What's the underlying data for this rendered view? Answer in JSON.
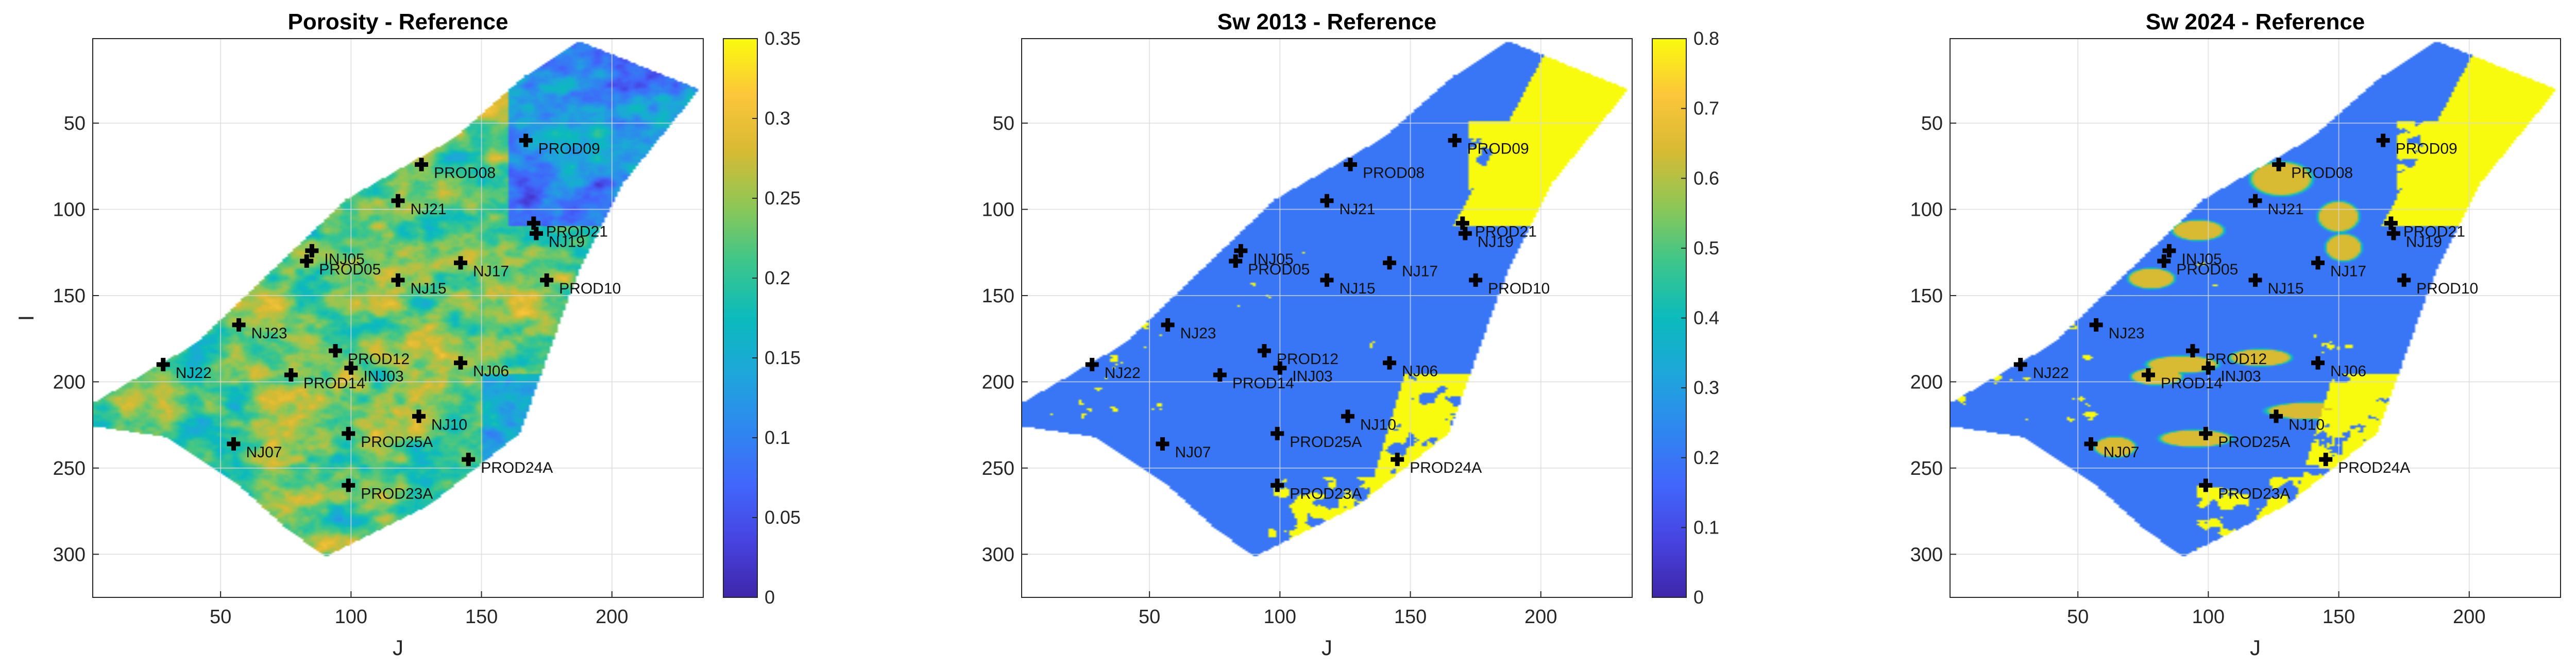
{
  "chart_data": [
    {
      "type": "heatmap",
      "title": "Porosity - Reference",
      "xlabel": "J",
      "ylabel": "I",
      "xlim": [
        1,
        235
      ],
      "ylim": [
        325,
        1
      ],
      "x_ticks": [
        50,
        100,
        150,
        200
      ],
      "y_ticks": [
        50,
        100,
        150,
        200,
        250,
        300
      ],
      "colorbar": {
        "min": 0,
        "max": 0.35,
        "ticks": [
          0,
          0.05,
          0.1,
          0.15,
          0.2,
          0.25,
          0.3,
          0.35
        ],
        "tick_labels": [
          "0",
          "0.05",
          "0.1",
          "0.15",
          "0.2",
          "0.25",
          "0.3",
          "0.35"
        ],
        "colormap": "parula"
      },
      "field": "porosity",
      "grid": true
    },
    {
      "type": "heatmap",
      "title": "Sw 2013 - Reference",
      "xlabel": "J",
      "ylabel": "",
      "xlim": [
        1,
        235
      ],
      "ylim": [
        325,
        1
      ],
      "x_ticks": [
        50,
        100,
        150,
        200
      ],
      "y_ticks": [
        50,
        100,
        150,
        200,
        250,
        300
      ],
      "colorbar": {
        "min": 0,
        "max": 0.8,
        "ticks": [
          0,
          0.1,
          0.2,
          0.3,
          0.4,
          0.5,
          0.6,
          0.7,
          0.8
        ],
        "tick_labels": [
          "0",
          "0.1",
          "0.2",
          "0.3",
          "0.4",
          "0.5",
          "0.6",
          "0.7",
          "0.8"
        ],
        "colormap": "parula"
      },
      "field": "sw2013",
      "grid": true
    },
    {
      "type": "heatmap",
      "title": "Sw 2024 - Reference",
      "xlabel": "J",
      "ylabel": "",
      "xlim": [
        1,
        235
      ],
      "ylim": [
        325,
        1
      ],
      "x_ticks": [
        50,
        100,
        150,
        200
      ],
      "y_ticks": [
        50,
        100,
        150,
        200,
        250,
        300
      ],
      "colorbar": {
        "min": 0,
        "max": 0.8,
        "ticks": [
          0,
          0.1,
          0.2,
          0.3,
          0.4,
          0.5,
          0.6,
          0.7,
          0.8
        ],
        "tick_labels": [
          "0",
          "0.1",
          "0.2",
          "0.3",
          "0.4",
          "0.5",
          "0.6",
          "0.7",
          "0.8"
        ],
        "colormap": "parula"
      },
      "field": "sw2024",
      "grid": true
    }
  ],
  "wells": [
    {
      "name": "PROD09",
      "j": 167,
      "i": 60
    },
    {
      "name": "PROD08",
      "j": 127,
      "i": 74
    },
    {
      "name": "NJ21",
      "j": 118,
      "i": 95
    },
    {
      "name": "PROD21",
      "j": 170,
      "i": 108
    },
    {
      "name": "NJ19",
      "j": 171,
      "i": 114
    },
    {
      "name": "INJ05",
      "j": 85,
      "i": 124
    },
    {
      "name": "PROD05",
      "j": 83,
      "i": 130
    },
    {
      "name": "NJ17",
      "j": 142,
      "i": 131
    },
    {
      "name": "NJ15",
      "j": 118,
      "i": 141
    },
    {
      "name": "PROD10",
      "j": 175,
      "i": 141
    },
    {
      "name": "NJ23",
      "j": 57,
      "i": 167
    },
    {
      "name": "PROD12",
      "j": 94,
      "i": 182
    },
    {
      "name": "NJ06",
      "j": 142,
      "i": 189
    },
    {
      "name": "NJ22",
      "j": 28,
      "i": 190
    },
    {
      "name": "INJ03",
      "j": 100,
      "i": 192
    },
    {
      "name": "PROD14",
      "j": 77,
      "i": 196
    },
    {
      "name": "NJ10",
      "j": 126,
      "i": 220
    },
    {
      "name": "PROD25A",
      "j": 99,
      "i": 230
    },
    {
      "name": "NJ07",
      "j": 55,
      "i": 236
    },
    {
      "name": "PROD24A",
      "j": 145,
      "i": 245
    },
    {
      "name": "PROD23A",
      "j": 99,
      "i": 260
    }
  ],
  "colors": {
    "outside": "#ffffff",
    "grid": "#d9d9d9",
    "axes": "#262626",
    "well_marker": "#000000"
  }
}
